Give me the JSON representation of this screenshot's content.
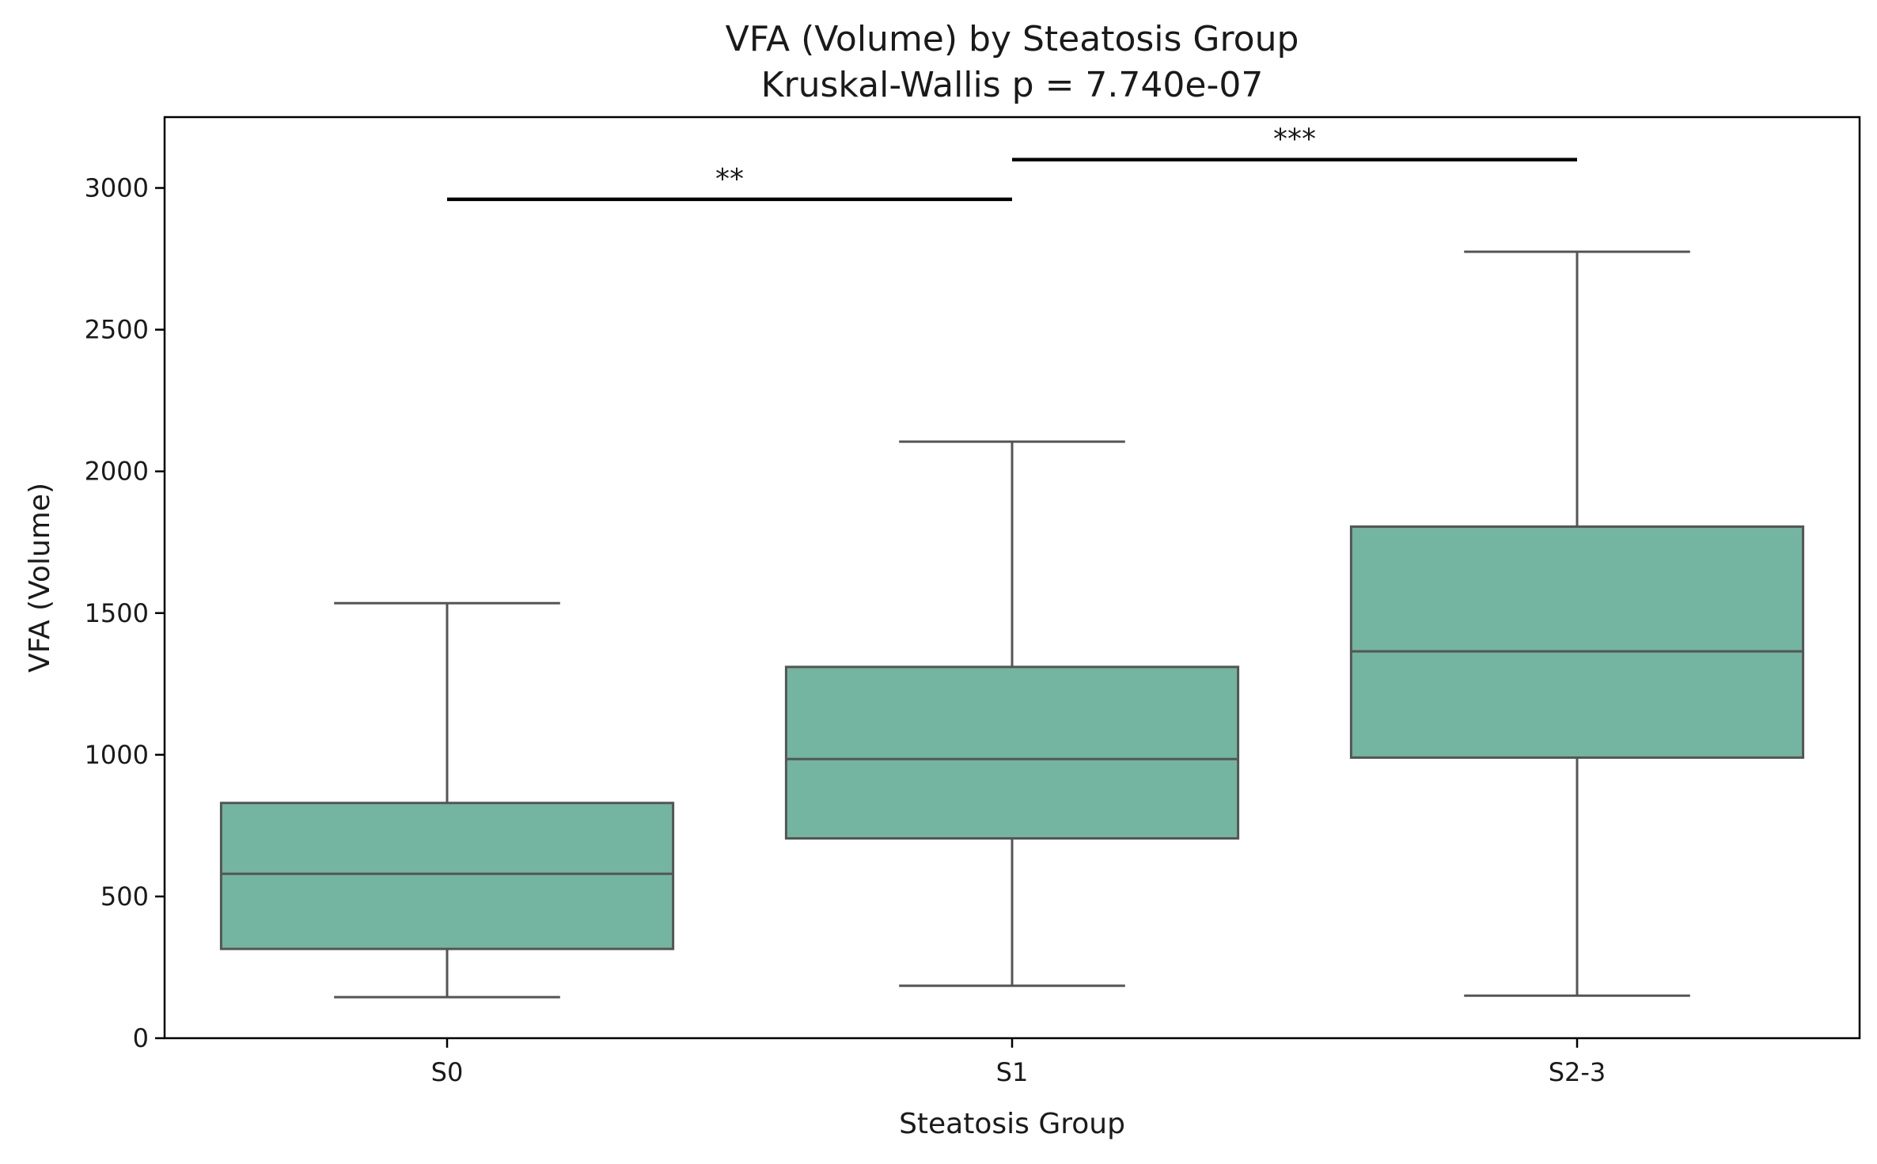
{
  "chart_data": {
    "type": "box",
    "title": "VFA (Volume) by Steatosis Group",
    "subtitle": "Kruskal-Wallis p = 7.740e-07",
    "xlabel": "Steatosis Group",
    "ylabel": "VFA (Volume)",
    "ylim": [
      0,
      3250
    ],
    "yticks": [
      0,
      500,
      1000,
      1500,
      2000,
      2500,
      3000
    ],
    "grid": false,
    "box_color": "#73b5a0",
    "line_color": "#555555",
    "groups": [
      {
        "label": "S0",
        "whisker_low": 145,
        "q1": 315,
        "median": 580,
        "q3": 830,
        "whisker_high": 1535
      },
      {
        "label": "S1",
        "whisker_low": 185,
        "q1": 705,
        "median": 985,
        "q3": 1310,
        "whisker_high": 2105
      },
      {
        "label": "S2-3",
        "whisker_low": 150,
        "q1": 990,
        "median": 1365,
        "q3": 1805,
        "whisker_high": 2775
      }
    ],
    "significance": [
      {
        "from": 0,
        "to": 1,
        "y": 2960,
        "label": "**"
      },
      {
        "from": 1,
        "to": 2,
        "y": 3100,
        "label": "***"
      }
    ]
  }
}
